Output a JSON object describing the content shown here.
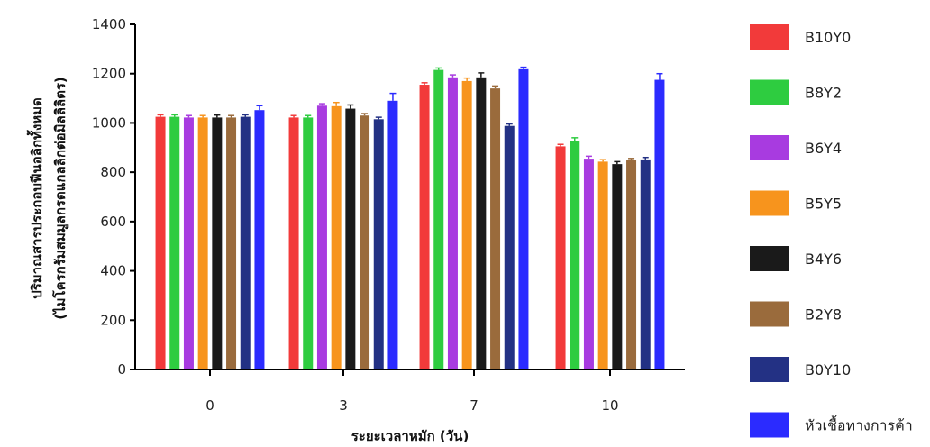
{
  "chart_data": {
    "type": "bar",
    "xlabel": "ระยะเวลาหมัก (วัน)",
    "ylabel_line1": "ปริมาณสารประกอบฟีนอลิกทั้งหมด",
    "ylabel_line2": "(ไมโครกรัมสมมูลกรดแกลลิกต่อมิลลิลิตร)",
    "ylim": [
      0,
      1400
    ],
    "yticks": [
      0,
      200,
      400,
      600,
      800,
      1000,
      1200,
      1400
    ],
    "categories": [
      "0",
      "3",
      "7",
      "10"
    ],
    "legend_position": "right",
    "series": [
      {
        "name": "B10Y0",
        "color": "#f23a3a",
        "values": [
          1025,
          1022,
          1155,
          905
        ],
        "errors": [
          8,
          8,
          8,
          8
        ]
      },
      {
        "name": "B8Y2",
        "color": "#2ecc40",
        "values": [
          1025,
          1022,
          1215,
          925
        ],
        "errors": [
          8,
          8,
          8,
          15
        ]
      },
      {
        "name": "B6Y4",
        "color": "#a83be0",
        "values": [
          1022,
          1070,
          1185,
          855
        ],
        "errors": [
          8,
          8,
          10,
          10
        ]
      },
      {
        "name": "B5Y5",
        "color": "#f7941d",
        "values": [
          1022,
          1068,
          1170,
          843
        ],
        "errors": [
          8,
          15,
          12,
          8
        ]
      },
      {
        "name": "B4Y6",
        "color": "#1a1a1a",
        "values": [
          1022,
          1058,
          1185,
          833
        ],
        "errors": [
          10,
          15,
          18,
          10
        ]
      },
      {
        "name": "B2Y8",
        "color": "#9a6b3c",
        "values": [
          1022,
          1030,
          1140,
          848
        ],
        "errors": [
          8,
          8,
          10,
          8
        ]
      },
      {
        "name": "B0Y10",
        "color": "#233184",
        "values": [
          1025,
          1015,
          988,
          852
        ],
        "errors": [
          8,
          8,
          8,
          8
        ]
      },
      {
        "name": "หัวเชื้อทางการค้า",
        "color": "#2b2bff",
        "values": [
          1052,
          1090,
          1218,
          1175
        ],
        "errors": [
          18,
          30,
          8,
          25
        ]
      }
    ]
  }
}
